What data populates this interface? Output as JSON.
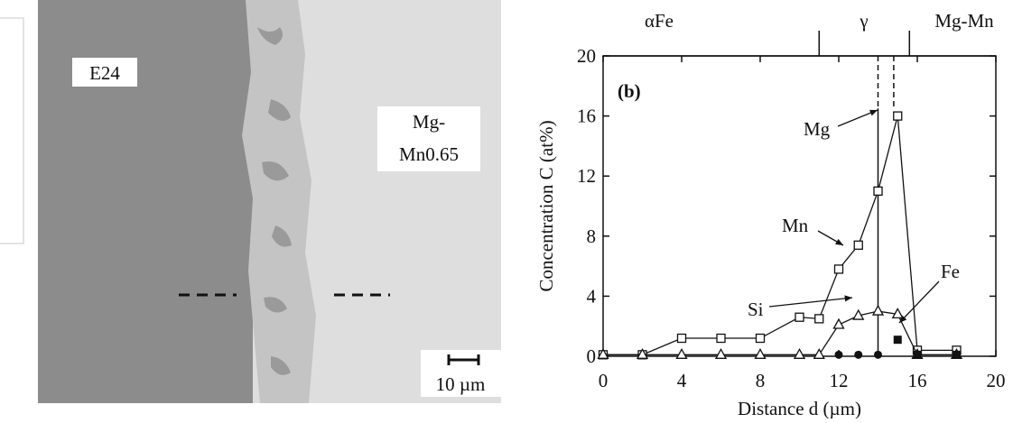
{
  "micrograph": {
    "left_label": "E24",
    "right_label_line1": "Mg-",
    "right_label_line2": "Mn0.65",
    "scale_bar": "10 µm"
  },
  "chart_data": {
    "type": "line",
    "panel_label": "(b)",
    "x_label": "Distance  d (µm)",
    "y_label": "Concentration  C (at%)",
    "phases": [
      "αFe",
      "γ",
      "Mg-Mn"
    ],
    "phase_boundaries": [
      11,
      15.6
    ],
    "boundaries": [
      14,
      14.8
    ],
    "xlim": [
      0,
      20
    ],
    "xticks": [
      0,
      4,
      8,
      12,
      16,
      20
    ],
    "ylim": [
      0,
      20
    ],
    "yticks": [
      0,
      4,
      8,
      12,
      16,
      20
    ],
    "series": [
      {
        "marker": "open-square",
        "x": [
          0,
          2,
          4,
          6,
          8,
          10,
          11,
          12,
          13,
          14,
          15,
          16,
          18
        ],
        "values": [
          0.1,
          0.1,
          1.2,
          1.2,
          1.2,
          2.6,
          2.5,
          5.8,
          7.4,
          11,
          16,
          0.4,
          0.4
        ]
      },
      {
        "marker": "open-triangle",
        "x": [
          0,
          2,
          4,
          6,
          8,
          10,
          11,
          12,
          13,
          14,
          15,
          16,
          18
        ],
        "values": [
          0.1,
          0.1,
          0.1,
          0.1,
          0.1,
          0.1,
          0.1,
          2.1,
          2.7,
          3,
          2.8,
          0.1,
          0.1
        ]
      },
      {
        "marker": "filled-circle",
        "x": [
          12,
          13,
          14
        ],
        "values": [
          0.1,
          0.1,
          0.1
        ]
      },
      {
        "marker": "filled-square",
        "x": [
          15,
          16,
          18
        ],
        "values": [
          1.1,
          0.1,
          0.1
        ]
      }
    ],
    "annotations": [
      "Mg",
      "Mn",
      "Si",
      "Fe"
    ]
  }
}
